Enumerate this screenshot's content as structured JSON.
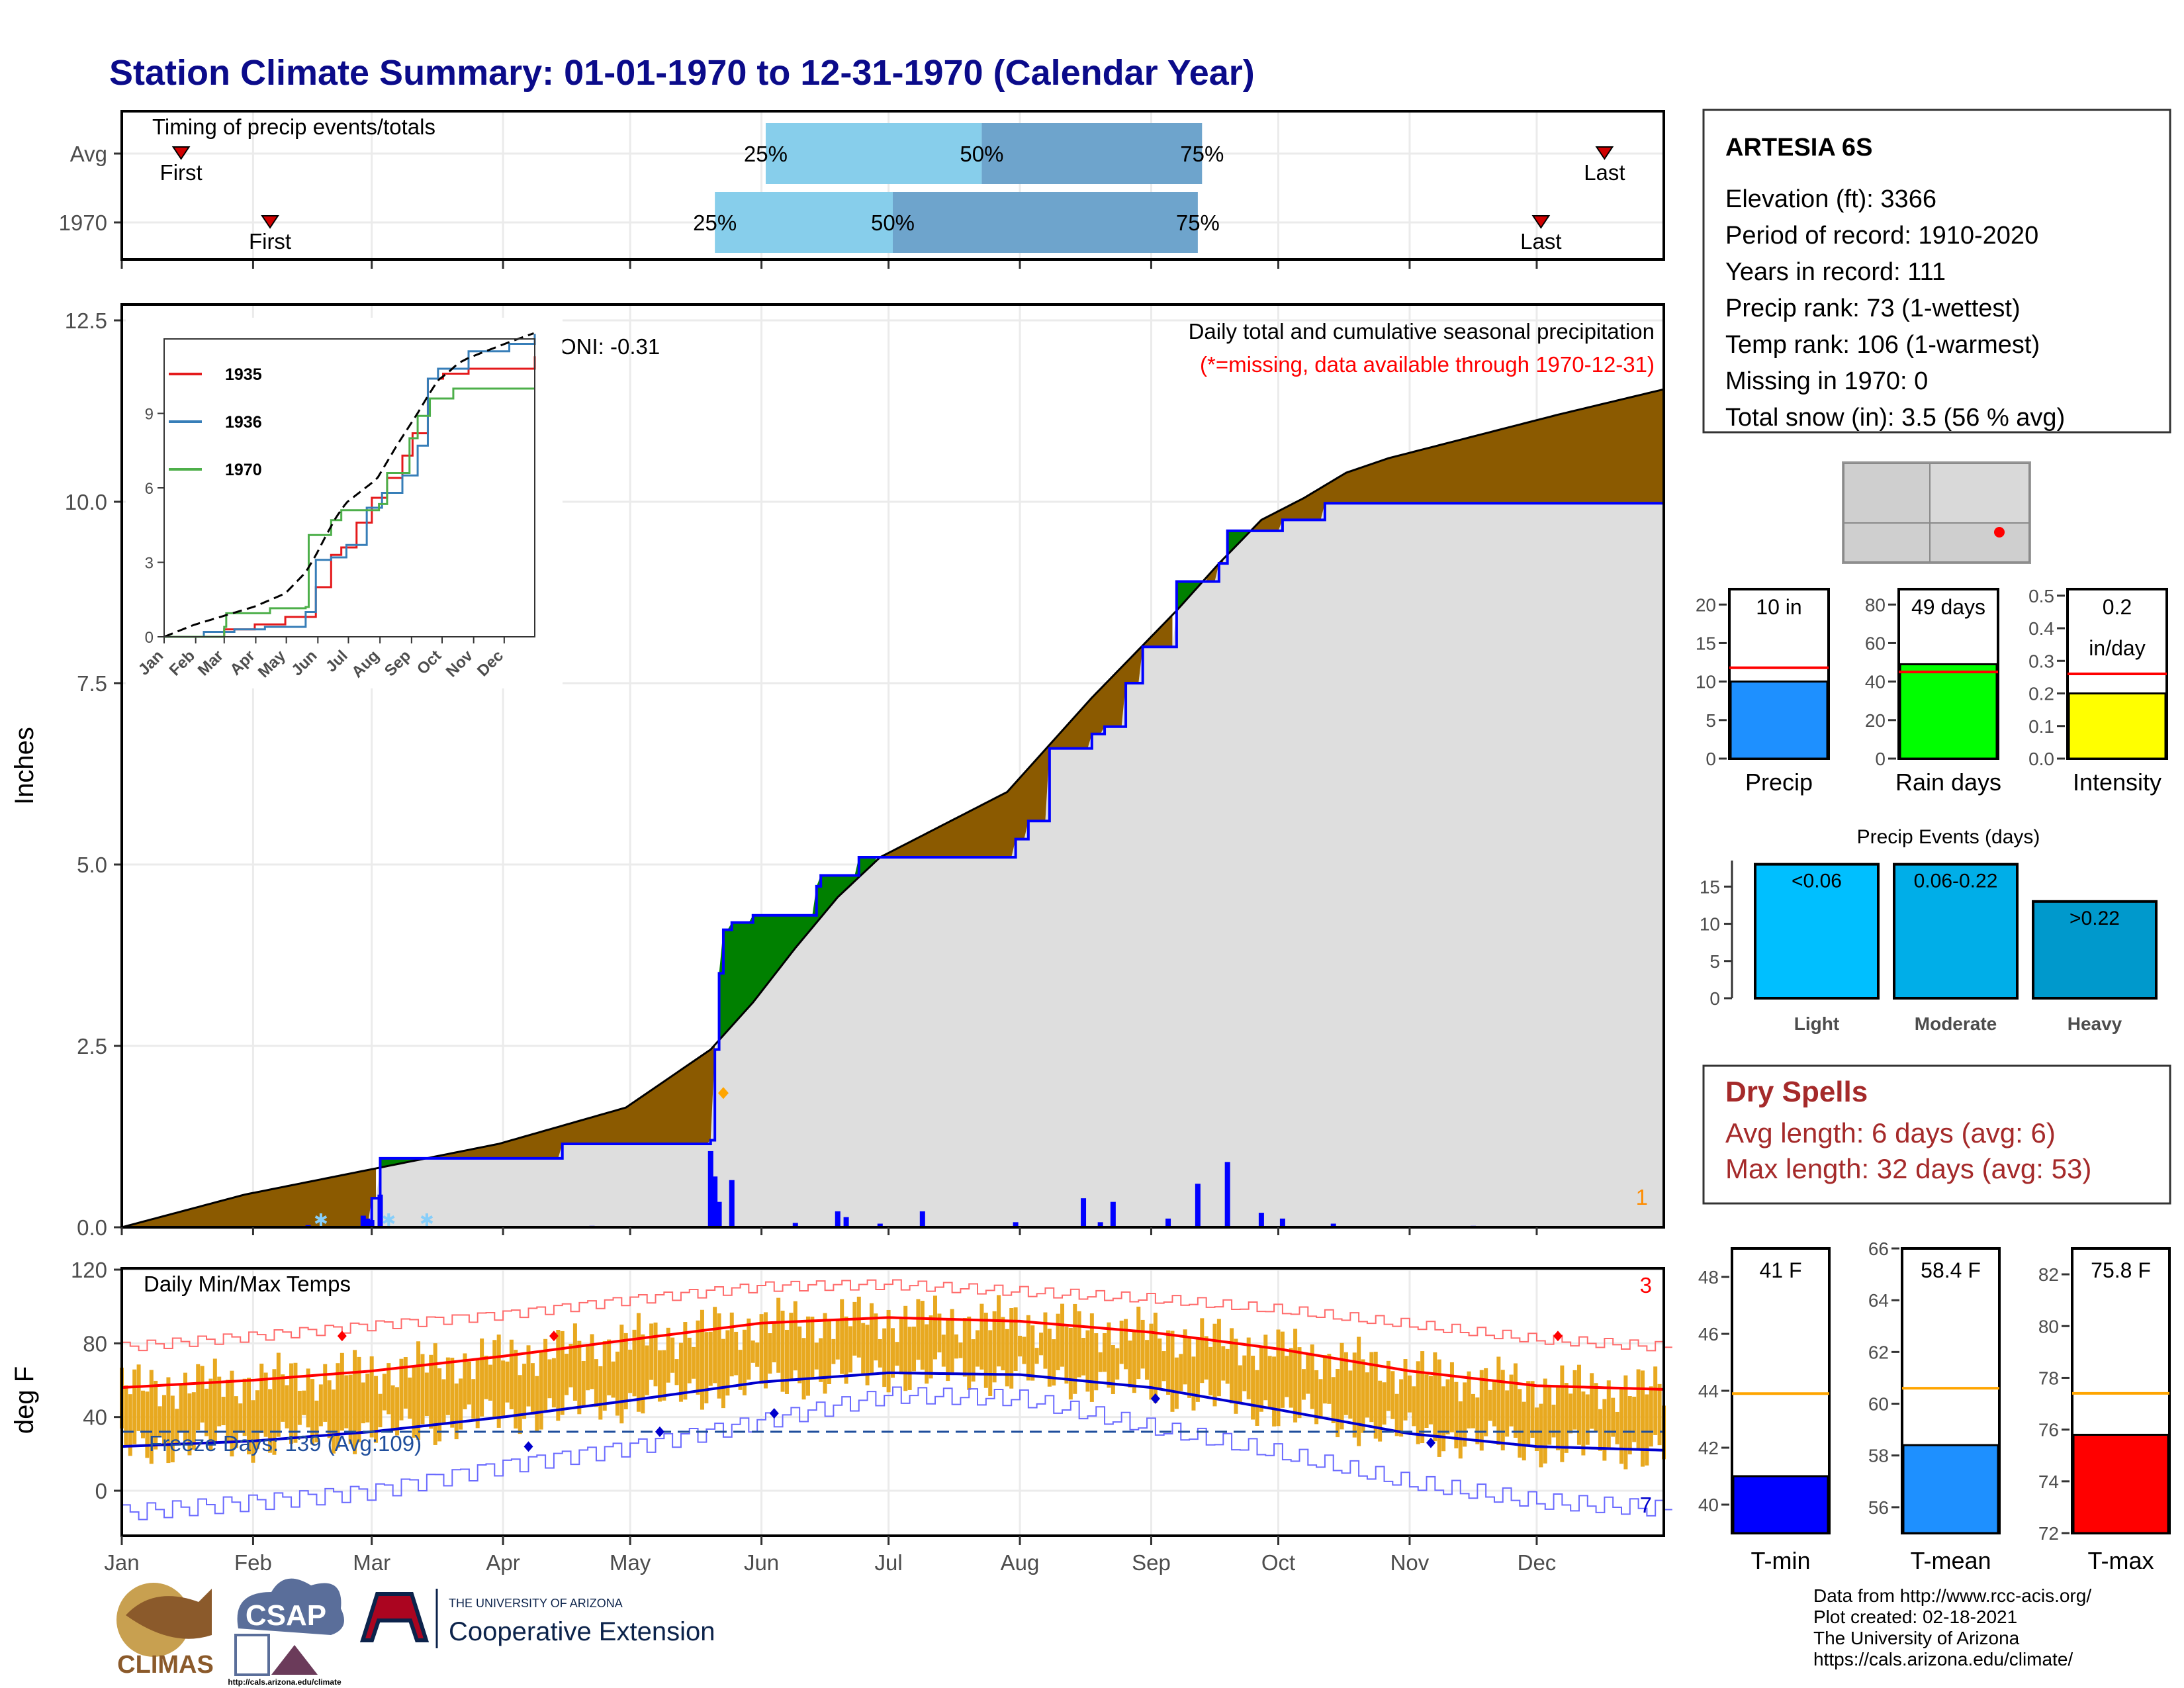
{
  "page": {
    "title": "Station Climate Summary: 01-01-1970 to 12-31-1970 (Calendar Year)",
    "colors": {
      "title": "#0b0b8a",
      "precip_surplus": "#008000",
      "precip_deficit": "#8b5a00",
      "avg_cum_fill": "#dedede",
      "daily_bar": "#0000ff",
      "tmax": "#ff0000",
      "tmin": "#0000cd",
      "temp_bar": "#e8a920",
      "dry_spells_text": "#a52a2a",
      "timing_light": "#87ceeb",
      "timing_dark": "#6ea4cc",
      "missing_note": "#ff0000",
      "count_note_precip": "#ff8c00"
    }
  },
  "timing": {
    "header": "Timing of precip events/totals",
    "rows": [
      {
        "label": "Avg",
        "first": "2000-01-15",
        "p25": "2000-06-01",
        "p50": "2000-07-22",
        "p75": "2000-09-12",
        "last": "2000-12-16"
      },
      {
        "label": "1970",
        "first": "2000-02-05",
        "p25": "2000-05-20",
        "p50": "2000-07-01",
        "p75": "2000-09-11",
        "last": "2000-12-01"
      }
    ],
    "labels": {
      "first": "First",
      "last": "Last",
      "p25": "25%",
      "p50": "50%",
      "p75": "75%"
    }
  },
  "precip_panel": {
    "ylabel": "Inches",
    "yticks": [
      "0.0",
      "2.5",
      "5.0",
      "7.5",
      "10.0",
      "12.5"
    ],
    "note_title": "Daily total and cumulative seasonal precipitation",
    "note_missing": "(*=missing, data available through 1970-12-31)",
    "oni": "ONI: -0.31",
    "corner_count": "1",
    "inset": {
      "yticks": [
        "0",
        "3",
        "6",
        "9"
      ],
      "xticks": [
        "Jan",
        "Feb",
        "Mar",
        "Apr",
        "May",
        "Jun",
        "Jul",
        "Aug",
        "Sep",
        "Oct",
        "Nov",
        "Dec"
      ],
      "legend": [
        {
          "name": "1935",
          "color": "#e41a1c"
        },
        {
          "name": "1936",
          "color": "#377eb8"
        },
        {
          "name": "1970",
          "color": "#4daf4a"
        }
      ]
    }
  },
  "temp_panel": {
    "ylabel": "deg F",
    "header": "Daily Min/Max Temps",
    "yticks": [
      "0",
      "40",
      "80",
      "120"
    ],
    "freeze_text": "Freeze Days: 139 (Avg:109)",
    "count_top": "3",
    "count_bottom": "7"
  },
  "months": [
    "Jan",
    "Feb",
    "Mar",
    "Apr",
    "May",
    "Jun",
    "Jul",
    "Aug",
    "Sep",
    "Oct",
    "Nov",
    "Dec"
  ],
  "station": {
    "name": "ARTESIA 6S",
    "lines": [
      "Elevation (ft): 3366",
      "Period of record: 1910-2020",
      "Years in record: 111",
      "Precip rank: 73 (1-wettest)",
      "Temp rank: 106 (1-warmest)",
      "Missing in 1970: 0",
      "Total snow (in): 3.5 (56 % avg)"
    ]
  },
  "mini_precip": [
    {
      "label": "Precip",
      "value_text": "10 in",
      "value": 10,
      "avg": 11.8,
      "ymax": 22,
      "yticks": [
        "0",
        "5",
        "10",
        "15",
        "20"
      ],
      "tickvals": [
        0,
        5,
        10,
        15,
        20
      ],
      "color": "#1e90ff"
    },
    {
      "label": "Rain days",
      "value_text": "49 days",
      "value": 49,
      "avg": 45,
      "ymax": 88,
      "yticks": [
        "0",
        "20",
        "40",
        "60",
        "80"
      ],
      "tickvals": [
        0,
        20,
        40,
        60,
        80
      ],
      "color": "#00ff00"
    },
    {
      "label": "Intensity",
      "value_text": "0.2",
      "value_text2": "in/day",
      "value": 0.2,
      "avg": 0.26,
      "ymax": 0.52,
      "yticks": [
        "0.0",
        "0.1",
        "0.2",
        "0.3",
        "0.4",
        "0.5"
      ],
      "tickvals": [
        0,
        0.1,
        0.2,
        0.3,
        0.4,
        0.5
      ],
      "color": "#ffff00"
    }
  ],
  "events": {
    "title": "Precip Events (days)",
    "ymax": 18.5,
    "yticks": [
      "0",
      "5",
      "10",
      "15"
    ],
    "tickvals": [
      0,
      5,
      10,
      15
    ],
    "bars": [
      {
        "label": "Light",
        "range": "<0.06",
        "value": 18,
        "color": "#00bfff"
      },
      {
        "label": "Moderate",
        "range": "0.06-0.22",
        "value": 18,
        "color": "#00aee8"
      },
      {
        "label": "Heavy",
        "range": ">0.22",
        "value": 13,
        "color": "#0099cc"
      }
    ]
  },
  "dry_spells": {
    "title": "Dry Spells",
    "avg_line": "Avg length: 6 days (avg: 6)",
    "max_line": "Max length: 32 days (avg: 53)"
  },
  "mini_temp": [
    {
      "label": "T-min",
      "value_text": "41 F",
      "value": 41,
      "avg": 43.9,
      "ymin": 39,
      "ymax": 49,
      "yticks": [
        "40",
        "42",
        "44",
        "46",
        "48"
      ],
      "tickvals": [
        40,
        42,
        44,
        46,
        48
      ],
      "color": "#0000ff"
    },
    {
      "label": "T-mean",
      "value_text": "58.4 F",
      "value": 58.4,
      "avg": 60.6,
      "ymin": 55,
      "ymax": 66,
      "yticks": [
        "56",
        "58",
        "60",
        "62",
        "64",
        "66"
      ],
      "tickvals": [
        56,
        58,
        60,
        62,
        64,
        66
      ],
      "color": "#1e90ff"
    },
    {
      "label": "T-max",
      "value_text": "75.8 F",
      "value": 75.8,
      "avg": 77.4,
      "ymin": 72,
      "ymax": 83,
      "yticks": [
        "72",
        "74",
        "76",
        "78",
        "80",
        "82"
      ],
      "tickvals": [
        72,
        74,
        76,
        78,
        80,
        82
      ],
      "color": "#ff0000"
    }
  ],
  "footer": {
    "lines": [
      "Data from http://www.rcc-acis.org/",
      "Plot created: 02-18-2021",
      "The University of Arizona",
      "https://cals.arizona.edu/climate/"
    ],
    "logos": {
      "climas": "CLIMAS",
      "csap": "CSAP",
      "csap_url": "http://cals.arizona.edu/climate",
      "ua_small": "THE UNIVERSITY OF ARIZONA",
      "ua_big": "Cooperative Extension"
    }
  },
  "chart_data": [
    {
      "type": "line",
      "title": "Daily total and cumulative seasonal precipitation",
      "ylabel": "Inches",
      "ylim": [
        0,
        12.5
      ],
      "x_units": "day of year",
      "series": [
        {
          "name": "1970",
          "x": [
            1,
            60,
            62,
            105,
            140,
            141,
            142,
            143,
            145,
            150,
            165,
            166,
            175,
            183,
            190,
            205,
            212,
            215,
            220,
            230,
            233,
            238,
            242,
            250,
            255,
            260,
            262,
            275,
            285,
            365
          ],
          "values": [
            0,
            0.4,
            0.95,
            1.15,
            1.2,
            2.45,
            3.5,
            4.1,
            4.2,
            4.3,
            4.7,
            4.85,
            5.1,
            5.1,
            5.1,
            5.1,
            5.35,
            5.6,
            6.6,
            6.8,
            6.9,
            7.5,
            8.0,
            8.9,
            8.9,
            9.15,
            9.6,
            9.75,
            9.98,
            10.0
          ]
        },
        {
          "name": "Avg",
          "x": [
            1,
            30,
            60,
            90,
            120,
            140,
            150,
            160,
            170,
            180,
            190,
            200,
            210,
            220,
            230,
            240,
            250,
            260,
            270,
            280,
            290,
            300,
            320,
            340,
            365
          ],
          "values": [
            0,
            0.45,
            0.8,
            1.15,
            1.65,
            2.45,
            3.1,
            3.85,
            4.55,
            5.1,
            5.4,
            5.7,
            6.0,
            6.65,
            7.3,
            7.9,
            8.5,
            9.15,
            9.75,
            10.05,
            10.4,
            10.6,
            10.9,
            11.2,
            11.55
          ]
        }
      ],
      "daily_precip": {
        "x": [
          45,
          58,
          59,
          60,
          62,
          112,
          140,
          141,
          142,
          145,
          160,
          170,
          172,
          180,
          190,
          212,
          228,
          232,
          235,
          248,
          255,
          262,
          270,
          275,
          287,
          320
        ],
        "values": [
          0.03,
          0.16,
          0.12,
          0.1,
          0.45,
          0.02,
          1.05,
          0.7,
          0.35,
          0.65,
          0.06,
          0.22,
          0.14,
          0.05,
          0.22,
          0.07,
          0.4,
          0.07,
          0.35,
          0.12,
          0.6,
          0.9,
          0.2,
          0.12,
          0.05,
          0.02
        ]
      }
    },
    {
      "type": "line",
      "title": "Daily Min/Max Temps",
      "ylabel": "deg F",
      "ylim": [
        -25,
        120
      ],
      "x_units": "day of year",
      "series": [
        {
          "name": "Avg Tmax",
          "x": [
            1,
            32,
            60,
            91,
            121,
            152,
            182,
            213,
            244,
            274,
            305,
            335,
            365
          ],
          "values": [
            56,
            60,
            65,
            73,
            82,
            91,
            94,
            92,
            86,
            77,
            65,
            57,
            55
          ]
        },
        {
          "name": "Avg Tmin",
          "x": [
            1,
            32,
            60,
            91,
            121,
            152,
            182,
            213,
            244,
            274,
            305,
            335,
            365
          ],
          "values": [
            24,
            27,
            32,
            40,
            49,
            59,
            64,
            63,
            56,
            44,
            31,
            24,
            22
          ]
        },
        {
          "name": "Record high",
          "x": [
            1,
            32,
            60,
            91,
            121,
            152,
            182,
            213,
            244,
            274,
            305,
            335,
            365
          ],
          "values": [
            78,
            84,
            90,
            96,
            104,
            111,
            112,
            108,
            104,
            98,
            90,
            82,
            78
          ]
        },
        {
          "name": "Record low",
          "x": [
            1,
            32,
            60,
            91,
            121,
            152,
            182,
            213,
            244,
            274,
            305,
            335,
            365
          ],
          "values": [
            -12,
            -6,
            0,
            14,
            24,
            38,
            52,
            50,
            34,
            20,
            4,
            -6,
            -10
          ]
        }
      ],
      "freeze_line": 32
    },
    {
      "type": "bar",
      "categories": [
        "Precip"
      ],
      "values": [
        10
      ],
      "ylim": [
        0,
        22
      ]
    },
    {
      "type": "bar",
      "categories": [
        "Rain days"
      ],
      "values": [
        49
      ],
      "ylim": [
        0,
        88
      ]
    },
    {
      "type": "bar",
      "categories": [
        "Intensity"
      ],
      "values": [
        0.2
      ],
      "ylim": [
        0,
        0.52
      ]
    },
    {
      "type": "bar",
      "title": "Precip Events (days)",
      "categories": [
        "Light",
        "Moderate",
        "Heavy"
      ],
      "values": [
        18,
        18,
        13
      ],
      "ylim": [
        0,
        18.5
      ]
    },
    {
      "type": "bar",
      "categories": [
        "T-min"
      ],
      "values": [
        41
      ],
      "ylim": [
        39,
        49
      ]
    },
    {
      "type": "bar",
      "categories": [
        "T-mean"
      ],
      "values": [
        58.4
      ],
      "ylim": [
        55,
        66
      ]
    },
    {
      "type": "bar",
      "categories": [
        "T-max"
      ],
      "values": [
        75.8
      ],
      "ylim": [
        72,
        83
      ]
    }
  ]
}
